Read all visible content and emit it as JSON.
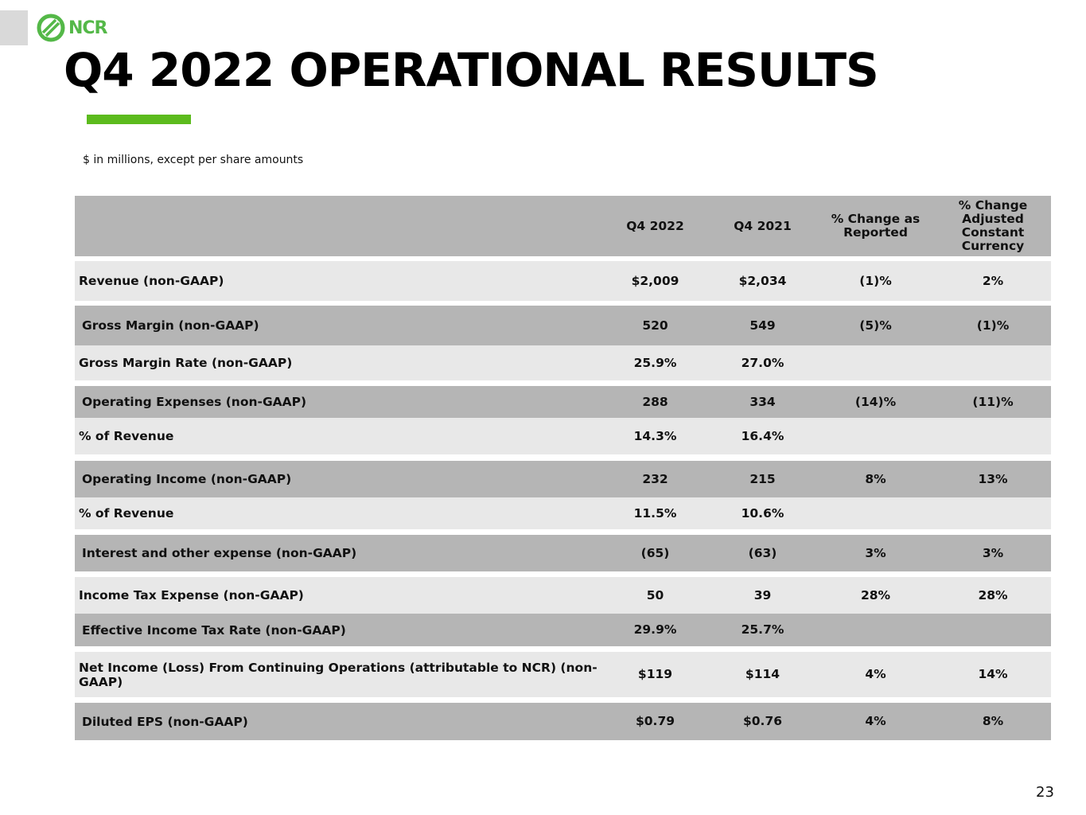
{
  "logo": {
    "text": "NCR"
  },
  "title": "Q4 2022 OPERATIONAL RESULTS",
  "subtitle": "$ in millions, except per share amounts",
  "table": {
    "headers": [
      "",
      "Q4 2022",
      "Q4 2021",
      "% Change as Reported",
      "% Change Adjusted Constant Currency"
    ],
    "rows": [
      {
        "label": "Revenue (non-GAAP)",
        "q4_2022": "$2,009",
        "q4_2021": "$2,034",
        "pct_reported": "(1)%",
        "pct_cc": "2%"
      },
      {
        "label": "Gross Margin (non-GAAP)",
        "q4_2022": "520",
        "q4_2021": "549",
        "pct_reported": "(5)%",
        "pct_cc": "(1)%"
      },
      {
        "label": "Gross Margin Rate (non-GAAP)",
        "q4_2022": "25.9%",
        "q4_2021": "27.0%",
        "pct_reported": "",
        "pct_cc": ""
      },
      {
        "label": "Operating Expenses (non-GAAP)",
        "q4_2022": "288",
        "q4_2021": "334",
        "pct_reported": "(14)%",
        "pct_cc": "(11)%"
      },
      {
        "label": "% of Revenue",
        "q4_2022": "14.3%",
        "q4_2021": "16.4%",
        "pct_reported": "",
        "pct_cc": ""
      },
      {
        "label": "Operating Income (non-GAAP)",
        "q4_2022": "232",
        "q4_2021": "215",
        "pct_reported": "8%",
        "pct_cc": "13%"
      },
      {
        "label": "% of Revenue",
        "q4_2022": "11.5%",
        "q4_2021": "10.6%",
        "pct_reported": "",
        "pct_cc": ""
      },
      {
        "label": "Interest and other expense (non-GAAP)",
        "q4_2022": "(65)",
        "q4_2021": "(63)",
        "pct_reported": "3%",
        "pct_cc": "3%"
      },
      {
        "label": "Income Tax Expense (non-GAAP)",
        "q4_2022": "50",
        "q4_2021": "39",
        "pct_reported": "28%",
        "pct_cc": "28%"
      },
      {
        "label": "Effective Income Tax Rate (non-GAAP)",
        "q4_2022": "29.9%",
        "q4_2021": "25.7%",
        "pct_reported": "",
        "pct_cc": ""
      },
      {
        "label": "Net Income (Loss) From Continuing Operations (attributable to NCR) (non-GAAP)",
        "q4_2022": "$119",
        "q4_2021": "$114",
        "pct_reported": "4%",
        "pct_cc": "14%"
      },
      {
        "label": "Diluted EPS (non-GAAP)",
        "q4_2022": "$0.79",
        "q4_2021": "$0.76",
        "pct_reported": "4%",
        "pct_cc": "8%"
      }
    ]
  },
  "page_number": "23",
  "colors": {
    "accent": "#5cbb1d",
    "logo": "#54b848",
    "row_dark": "#b5b5b5",
    "row_light": "#e8e8e8"
  }
}
